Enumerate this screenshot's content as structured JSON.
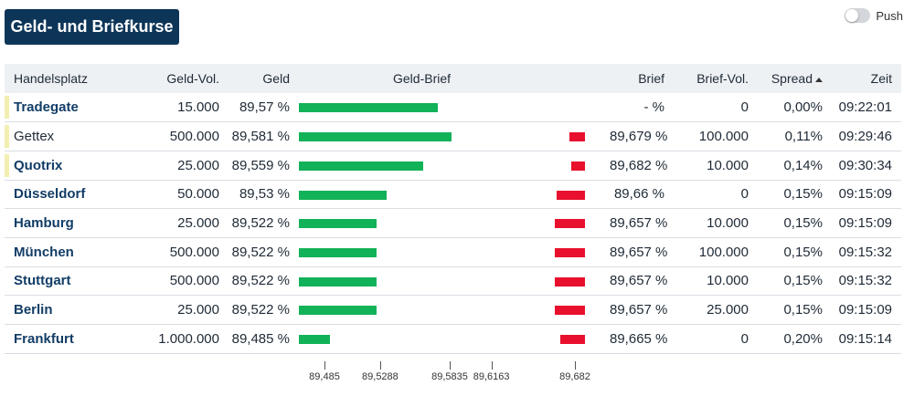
{
  "title": "Geld- und Briefkurse",
  "push_label": "Push",
  "headers": {
    "handelsplatz": "Handelsplatz",
    "geld_vol": "Geld-Vol.",
    "geld": "Geld",
    "geld_brief": "Geld-Brief",
    "brief": "Brief",
    "brief_vol": "Brief-Vol.",
    "spread": "Spread",
    "zeit": "Zeit"
  },
  "rows": [
    {
      "name": "Tradegate",
      "link": true,
      "marker": true,
      "geld_vol": "15.000",
      "geld": "89,57 %",
      "brief": "-  %",
      "brief_vol": "0",
      "spread": "0,00%",
      "zeit": "09:22:01",
      "geld_value": 89.57,
      "brief_value": null
    },
    {
      "name": "Gettex",
      "link": false,
      "marker": true,
      "geld_vol": "500.000",
      "geld": "89,581 %",
      "brief": "89,679 %",
      "brief_vol": "100.000",
      "spread": "0,11%",
      "zeit": "09:29:46",
      "geld_value": 89.581,
      "brief_value": 89.679
    },
    {
      "name": "Quotrix",
      "link": true,
      "marker": true,
      "geld_vol": "25.000",
      "geld": "89,559 %",
      "brief": "89,682 %",
      "brief_vol": "10.000",
      "spread": "0,14%",
      "zeit": "09:30:34",
      "geld_value": 89.559,
      "brief_value": 89.682
    },
    {
      "name": "Düsseldorf",
      "link": true,
      "marker": false,
      "geld_vol": "50.000",
      "geld": "89,53 %",
      "brief": "89,66 %",
      "brief_vol": "0",
      "spread": "0,15%",
      "zeit": "09:15:09",
      "geld_value": 89.53,
      "brief_value": 89.66
    },
    {
      "name": "Hamburg",
      "link": true,
      "marker": false,
      "geld_vol": "25.000",
      "geld": "89,522 %",
      "brief": "89,657 %",
      "brief_vol": "10.000",
      "spread": "0,15%",
      "zeit": "09:15:09",
      "geld_value": 89.522,
      "brief_value": 89.657
    },
    {
      "name": "München",
      "link": true,
      "marker": false,
      "geld_vol": "500.000",
      "geld": "89,522 %",
      "brief": "89,657 %",
      "brief_vol": "100.000",
      "spread": "0,15%",
      "zeit": "09:15:32",
      "geld_value": 89.522,
      "brief_value": 89.657
    },
    {
      "name": "Stuttgart",
      "link": true,
      "marker": false,
      "geld_vol": "500.000",
      "geld": "89,522 %",
      "brief": "89,657 %",
      "brief_vol": "10.000",
      "spread": "0,15%",
      "zeit": "09:15:32",
      "geld_value": 89.522,
      "brief_value": 89.657
    },
    {
      "name": "Berlin",
      "link": true,
      "marker": false,
      "geld_vol": "25.000",
      "geld": "89,522 %",
      "brief": "89,657 %",
      "brief_vol": "25.000",
      "spread": "0,15%",
      "zeit": "09:15:09",
      "geld_value": 89.522,
      "brief_value": 89.657
    },
    {
      "name": "Frankfurt",
      "link": true,
      "marker": false,
      "geld_vol": "1.000.000",
      "geld": "89,485 %",
      "brief": "89,665 %",
      "brief_vol": "0",
      "spread": "0,20%",
      "zeit": "09:15:14",
      "geld_value": 89.485,
      "brief_value": 89.665
    }
  ],
  "axis_ticks": [
    {
      "label": "89,485",
      "value": 89.485
    },
    {
      "label": "89,5288",
      "value": 89.5288
    },
    {
      "label": "89,5835",
      "value": 89.5835
    },
    {
      "label": "89,6163",
      "value": 89.6163
    },
    {
      "label": "89,682",
      "value": 89.682
    }
  ],
  "colors": {
    "geld_bar": "#12b259",
    "brief_bar": "#e8102d",
    "title_bg": "#0c3558",
    "link": "#123d66"
  }
}
